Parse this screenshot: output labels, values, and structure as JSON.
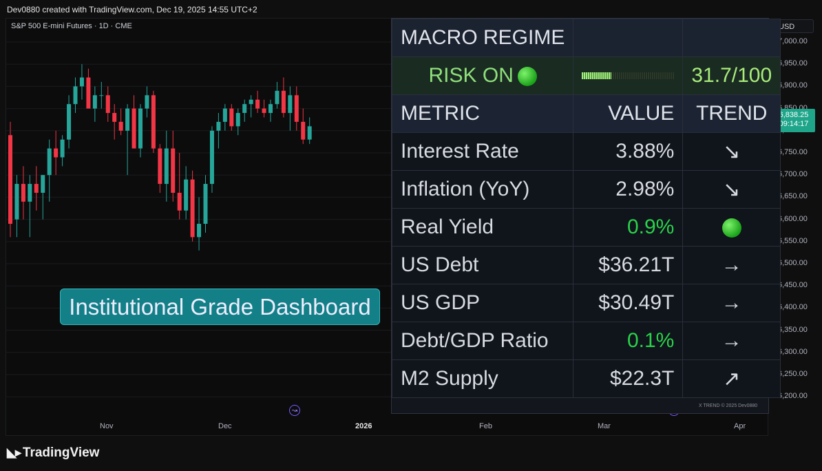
{
  "header": {
    "attribution": "Dev0880 created with TradingView.com, Dec 19, 2025 14:55 UTC+2"
  },
  "chart": {
    "symbol": "S&P 500 E-mini Futures · 1D · CME",
    "currency": "USD",
    "price_labels": [
      "7,000.00",
      "6,950.00",
      "6,900.00",
      "6,850.00",
      "6,800.00",
      "6,750.00",
      "6,700.00",
      "6,650.00",
      "6,600.00",
      "6,550.00",
      "6,500.00",
      "6,450.00",
      "6,400.00",
      "6,350.00",
      "6,300.00",
      "6,250.00",
      "6,200.00"
    ],
    "last_price": "6,838.25",
    "countdown": "09:14:17",
    "time_labels": [
      "Nov",
      "Dec",
      "2026",
      "Feb",
      "Mar",
      "Apr"
    ],
    "badge": "Institutional Grade Dashboard",
    "colors": {
      "up": "#26a69a",
      "down": "#f23645"
    }
  },
  "chart_data": {
    "type": "candlestick",
    "title": "S&P 500 E-mini Futures · 1D · CME",
    "ylim": [
      6200,
      7000
    ],
    "candles": [
      [
        6790,
        6820,
        6560,
        6590
      ],
      [
        6600,
        6700,
        6560,
        6680
      ],
      [
        6680,
        6720,
        6600,
        6640
      ],
      [
        6640,
        6700,
        6560,
        6680
      ],
      [
        6680,
        6720,
        6620,
        6660
      ],
      [
        6660,
        6700,
        6600,
        6700
      ],
      [
        6700,
        6780,
        6640,
        6760
      ],
      [
        6760,
        6800,
        6700,
        6740
      ],
      [
        6740,
        6790,
        6720,
        6780
      ],
      [
        6780,
        6880,
        6760,
        6860
      ],
      [
        6860,
        6920,
        6840,
        6900
      ],
      [
        6900,
        6950,
        6870,
        6920
      ],
      [
        6920,
        6940,
        6850,
        6850
      ],
      [
        6850,
        6900,
        6820,
        6880
      ],
      [
        6880,
        6910,
        6850,
        6880
      ],
      [
        6880,
        6900,
        6820,
        6840
      ],
      [
        6840,
        6860,
        6780,
        6820
      ],
      [
        6820,
        6850,
        6790,
        6800
      ],
      [
        6800,
        6860,
        6700,
        6850
      ],
      [
        6850,
        6880,
        6760,
        6760
      ],
      [
        6760,
        6860,
        6740,
        6850
      ],
      [
        6850,
        6900,
        6830,
        6880
      ],
      [
        6880,
        6890,
        6750,
        6760
      ],
      [
        6760,
        6770,
        6660,
        6680
      ],
      [
        6680,
        6800,
        6640,
        6760
      ],
      [
        6760,
        6800,
        6640,
        6660
      ],
      [
        6660,
        6750,
        6600,
        6620
      ],
      [
        6620,
        6720,
        6600,
        6690
      ],
      [
        6690,
        6710,
        6550,
        6560
      ],
      [
        6560,
        6650,
        6530,
        6590
      ],
      [
        6590,
        6700,
        6570,
        6680
      ],
      [
        6680,
        6810,
        6660,
        6800
      ],
      [
        6800,
        6840,
        6760,
        6820
      ],
      [
        6820,
        6860,
        6800,
        6850
      ],
      [
        6850,
        6860,
        6800,
        6810
      ],
      [
        6810,
        6850,
        6790,
        6840
      ],
      [
        6840,
        6870,
        6820,
        6860
      ],
      [
        6860,
        6880,
        6830,
        6870
      ],
      [
        6870,
        6890,
        6840,
        6850
      ],
      [
        6850,
        6870,
        6830,
        6840
      ],
      [
        6840,
        6870,
        6820,
        6860
      ],
      [
        6860,
        6910,
        6850,
        6890
      ],
      [
        6890,
        6920,
        6830,
        6840
      ],
      [
        6840,
        6900,
        6800,
        6880
      ],
      [
        6880,
        6900,
        6800,
        6820
      ],
      [
        6820,
        6850,
        6770,
        6780
      ],
      [
        6780,
        6830,
        6770,
        6810
      ]
    ]
  },
  "dashboard": {
    "title": "MACRO REGIME",
    "regime_label": "RISK ON",
    "score": "31.7/100",
    "score_value": 31.7,
    "col_metric": "METRIC",
    "col_value": "VALUE",
    "col_trend": "TREND",
    "rows": [
      {
        "metric": "Interest Rate",
        "value": "3.88%",
        "trend": "↘",
        "value_green": false
      },
      {
        "metric": "Inflation (YoY)",
        "value": "2.98%",
        "trend": "↘",
        "value_green": false
      },
      {
        "metric": "Real Yield",
        "value": "0.9%",
        "trend": "dot",
        "value_green": true
      },
      {
        "metric": "US Debt",
        "value": "$36.21T",
        "trend": "→",
        "value_green": false
      },
      {
        "metric": "US GDP",
        "value": "$30.49T",
        "trend": "→",
        "value_green": false
      },
      {
        "metric": "Debt/GDP Ratio",
        "value": "0.1%",
        "trend": "→",
        "value_green": true
      },
      {
        "metric": "M2 Supply",
        "value": "$22.3T",
        "trend": "↗",
        "value_green": false
      }
    ],
    "footer": "X TREND © 2025 Dev0880"
  },
  "brand": {
    "name": "TradingView"
  }
}
